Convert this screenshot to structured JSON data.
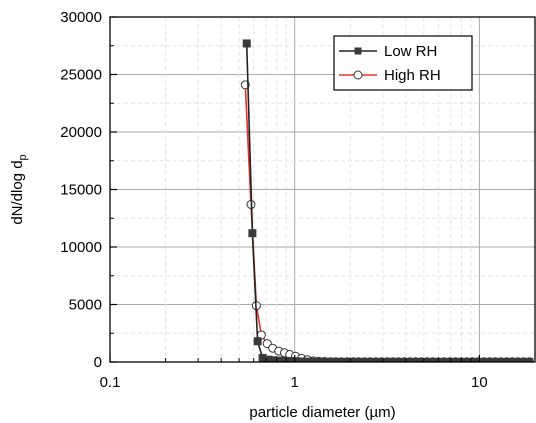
{
  "chart_data": {
    "type": "line",
    "title": "",
    "xlabel": "particle diameter (µm)",
    "ylabel": "dN/dlog d",
    "ylabel_subscript": "p",
    "x_scale": "log",
    "xlim": [
      0.1,
      20
    ],
    "ylim": [
      0,
      30000
    ],
    "x_ticks": [
      0.1,
      1,
      10
    ],
    "x_tick_labels": [
      "0.1",
      "1",
      "10"
    ],
    "y_ticks": [
      0,
      5000,
      10000,
      15000,
      20000,
      25000,
      30000
    ],
    "y_tick_labels": [
      "0",
      "5000",
      "10000",
      "15000",
      "20000",
      "25000",
      "30000"
    ],
    "grid": true,
    "legend_position": "top-right",
    "series": [
      {
        "name": "Low RH",
        "color": "#000000",
        "line_color": "#222222",
        "marker": "filled-square",
        "x": [
          0.55,
          0.59,
          0.63,
          0.67,
          0.72,
          0.77,
          0.83,
          0.89,
          0.95,
          1.02,
          1.1,
          1.18,
          1.27,
          1.36,
          1.46,
          1.57,
          1.68,
          1.8,
          1.94,
          2.08,
          2.23,
          2.4,
          2.57,
          2.76,
          2.96,
          3.18,
          3.41,
          3.66,
          3.93,
          4.22,
          4.53,
          4.86,
          5.22,
          5.6,
          6.01,
          6.45,
          6.92,
          7.43,
          7.97,
          8.56,
          9.19,
          9.86,
          10.58,
          11.36,
          12.19,
          13.09,
          14.05,
          15.08,
          16.19,
          17.38,
          18.65
        ],
        "y": [
          27700,
          11200,
          1800,
          350,
          200,
          150,
          120,
          100,
          80,
          60,
          40,
          30,
          20,
          20,
          15,
          15,
          10,
          10,
          10,
          10,
          5,
          5,
          5,
          5,
          5,
          5,
          5,
          5,
          5,
          5,
          5,
          5,
          5,
          5,
          5,
          5,
          5,
          5,
          5,
          5,
          5,
          5,
          5,
          5,
          5,
          5,
          5,
          5,
          5,
          5,
          5
        ]
      },
      {
        "name": "High RH",
        "color": "#e8302c",
        "line_color": "#e8302c",
        "marker": "open-circle",
        "x": [
          0.54,
          0.58,
          0.62,
          0.66,
          0.71,
          0.76,
          0.82,
          0.88,
          0.94,
          1.01,
          1.09,
          1.17,
          1.26,
          1.35,
          1.45,
          1.56,
          1.67,
          1.79,
          1.93,
          2.07,
          2.22,
          2.39,
          2.56,
          2.75,
          2.95,
          3.17,
          3.4,
          3.65,
          3.92,
          4.21,
          4.52,
          4.85,
          5.21,
          5.59,
          6.0,
          6.44,
          6.91,
          7.42,
          7.96,
          8.55,
          9.18,
          9.85,
          10.57,
          11.35,
          12.18,
          13.08,
          14.04,
          15.07,
          16.18,
          17.37,
          18.64
        ],
        "y": [
          24100,
          13700,
          4900,
          2350,
          1600,
          1200,
          950,
          800,
          650,
          500,
          320,
          200,
          100,
          60,
          40,
          20,
          20,
          20,
          20,
          20,
          20,
          20,
          20,
          20,
          20,
          20,
          20,
          20,
          20,
          20,
          20,
          20,
          20,
          20,
          20,
          20,
          20,
          20,
          20,
          20,
          20,
          20,
          20,
          20,
          20,
          20,
          20,
          20,
          20,
          20,
          20
        ]
      }
    ]
  }
}
